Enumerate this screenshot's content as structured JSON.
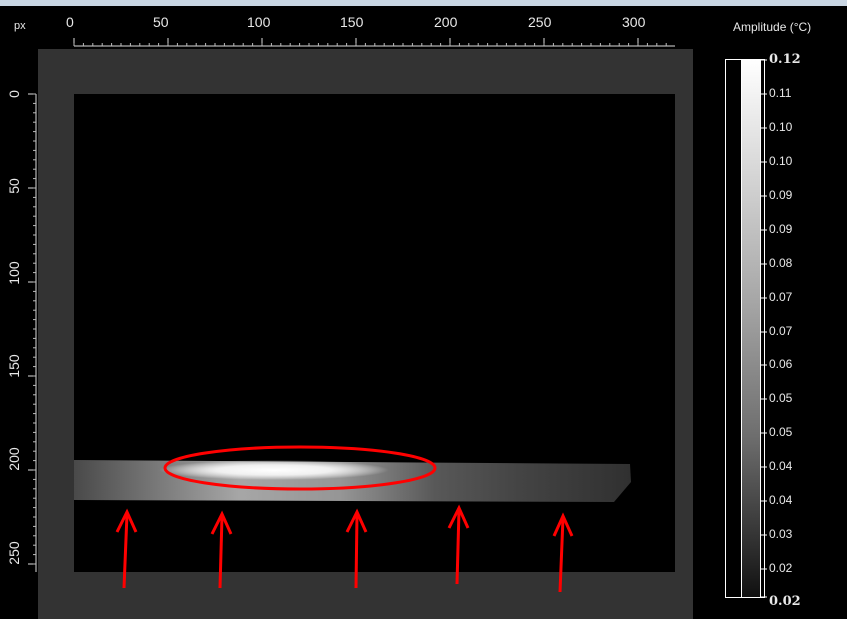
{
  "axis_unit": "px",
  "x_ticks": [
    "0",
    "50",
    "100",
    "150",
    "200",
    "250",
    "300"
  ],
  "y_ticks": [
    "0",
    "50",
    "100",
    "150",
    "200",
    "250"
  ],
  "colorbar": {
    "title": "Amplitude (°C)",
    "labels": [
      "0.12",
      "0.11",
      "0.10",
      "0.10",
      "0.09",
      "0.09",
      "0.08",
      "0.07",
      "0.07",
      "0.06",
      "0.05",
      "0.05",
      "0.04",
      "0.04",
      "0.03",
      "0.02",
      "0.02"
    ]
  },
  "colors": {
    "annotation": "#ff0000",
    "viewport_bg": "#333333",
    "image_bg": "#000000"
  }
}
